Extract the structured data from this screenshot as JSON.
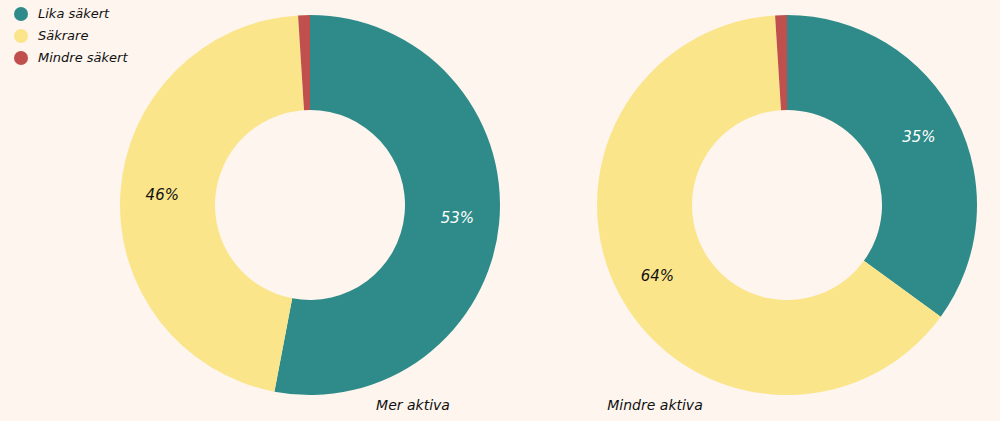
{
  "chart_data": [
    {
      "type": "pie",
      "title": "Mer aktiva",
      "categories": [
        "Lika säkert",
        "Säkrare",
        "Mindre säkert"
      ],
      "values": [
        53,
        46,
        1
      ],
      "value_labels": [
        "53%",
        "46%",
        null
      ],
      "colors": [
        "#2e8b89",
        "#fbe58a",
        "#c0504d"
      ],
      "data_labels": true,
      "legend": "top-left"
    },
    {
      "type": "pie",
      "title": "Mindre aktiva",
      "categories": [
        "Lika säkert",
        "Säkrare",
        "Mindre säkert"
      ],
      "values": [
        35,
        64,
        1
      ],
      "value_labels": [
        "35%",
        "64%",
        null
      ],
      "colors": [
        "#2e8b89",
        "#fbe58a",
        "#c0504d"
      ],
      "data_labels": true
    }
  ]
}
